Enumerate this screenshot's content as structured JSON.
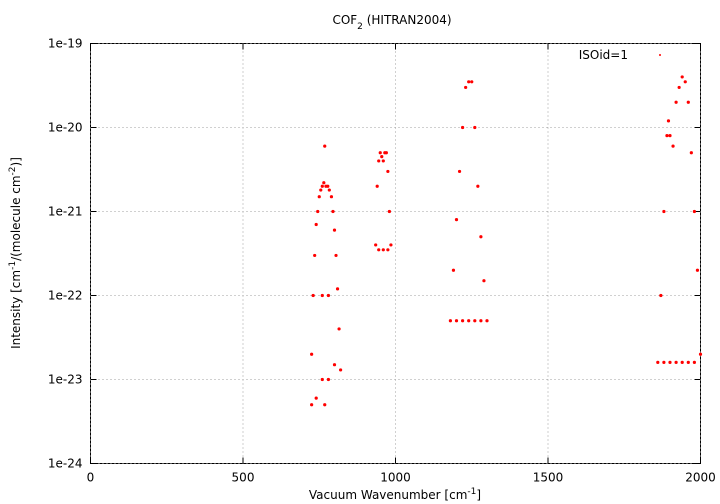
{
  "chart_data": {
    "type": "scatter",
    "title_parts": [
      {
        "text": "COF"
      },
      {
        "text": "2",
        "sub": true
      },
      {
        "text": " (HITRAN2004)"
      }
    ],
    "x_label_parts": [
      {
        "text": "Vacuum Wavenumber [cm"
      },
      {
        "text": "-1",
        "sup": true
      },
      {
        "text": "]"
      }
    ],
    "y_label_parts": [
      {
        "text": "Intensity [cm"
      },
      {
        "text": "-1",
        "sup": true
      },
      {
        "text": "/(molecule cm"
      },
      {
        "text": "-2",
        "sup": true
      },
      {
        "text": ")]"
      }
    ],
    "xlim": [
      0,
      2000
    ],
    "xticks": [
      0,
      500,
      1000,
      1500,
      2000
    ],
    "ylim": [
      1e-24,
      1e-19
    ],
    "yticks": [
      1e-24,
      1e-23,
      1e-22,
      1e-21,
      1e-20,
      1e-19
    ],
    "ylog": true,
    "grid": true,
    "legend_position": "top-right",
    "series": [
      {
        "name": "ISOid=1",
        "color": "#ff0000",
        "x": [
          725,
          730,
          735,
          740,
          745,
          750,
          755,
          760,
          765,
          768,
          772,
          778,
          783,
          790,
          795,
          800,
          805,
          810,
          815,
          820,
          725,
          740,
          760,
          768,
          780,
          800,
          760,
          780,
          935,
          940,
          945,
          950,
          955,
          960,
          965,
          970,
          975,
          980,
          985,
          945,
          960,
          975,
          1180,
          1190,
          1200,
          1210,
          1220,
          1230,
          1240,
          1250,
          1260,
          1270,
          1280,
          1290,
          1300,
          1200,
          1220,
          1240,
          1260,
          1280,
          1860,
          1870,
          1880,
          1890,
          1895,
          1900,
          1910,
          1920,
          1930,
          1940,
          1950,
          1960,
          1970,
          1980,
          1990,
          2000,
          1880,
          1900,
          1920,
          1940,
          1960,
          1980
        ],
        "values": [
          2e-23,
          1e-22,
          3e-22,
          7e-22,
          1e-21,
          1.5e-21,
          1.8e-21,
          2e-21,
          2.2e-21,
          6e-21,
          2e-21,
          2e-21,
          1.8e-21,
          1.5e-21,
          1e-21,
          6e-22,
          3e-22,
          1.2e-22,
          4e-23,
          1.3e-23,
          5e-24,
          6e-24,
          1e-23,
          5e-24,
          1e-23,
          1.5e-23,
          1e-22,
          1e-22,
          4e-22,
          2e-21,
          4e-21,
          5e-21,
          4.5e-21,
          4e-21,
          5e-21,
          5e-21,
          3e-21,
          1e-21,
          4e-22,
          3.5e-22,
          3.5e-22,
          3.5e-22,
          5e-23,
          2e-22,
          8e-22,
          3e-21,
          1e-20,
          3e-20,
          3.5e-20,
          3.5e-20,
          1e-20,
          2e-21,
          5e-22,
          1.5e-22,
          5e-23,
          5e-23,
          5e-23,
          5e-23,
          5e-23,
          5e-23,
          1.6e-23,
          1e-22,
          1e-21,
          8e-21,
          1.2e-20,
          8e-21,
          6e-21,
          2e-20,
          3e-20,
          4e-20,
          3.5e-20,
          2e-20,
          5e-21,
          1e-21,
          2e-22,
          2e-23,
          1.6e-23,
          1.6e-23,
          1.6e-23,
          1.6e-23,
          1.6e-23,
          1.6e-23
        ]
      }
    ]
  }
}
